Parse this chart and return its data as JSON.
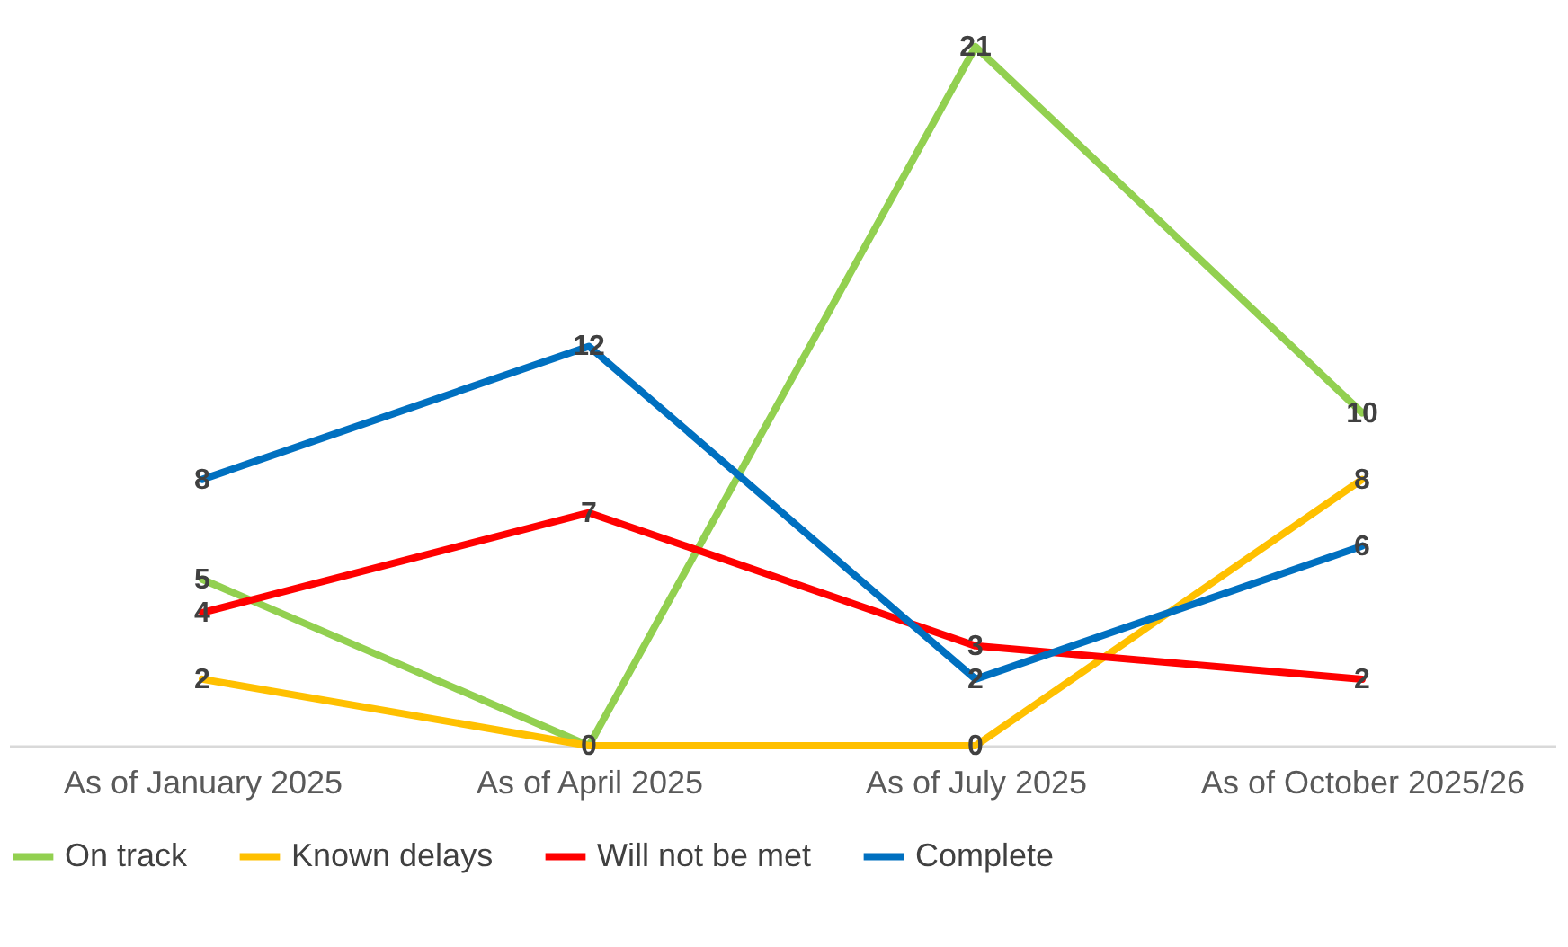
{
  "chart_data": {
    "type": "line",
    "categories": [
      "As of January 2025",
      "As of April 2025",
      "As of July 2025",
      "As of October 2025/26"
    ],
    "series": [
      {
        "name": "On track",
        "color": "#92d050",
        "values": [
          5,
          0,
          21,
          10
        ],
        "value_labels": [
          "5",
          "0",
          "21",
          "10"
        ]
      },
      {
        "name": "Known delays",
        "color": "#ffc000",
        "values": [
          2,
          0,
          0,
          8
        ],
        "value_labels": [
          "2",
          null,
          "0",
          "8"
        ]
      },
      {
        "name": "Will not be met",
        "color": "#ff0000",
        "values": [
          4,
          7,
          3,
          2
        ],
        "value_labels": [
          "4",
          "7",
          "3",
          "2"
        ]
      },
      {
        "name": "Complete",
        "color": "#0070c0",
        "values": [
          8,
          12,
          2,
          6
        ],
        "value_labels": [
          "8",
          "12",
          "2",
          "6"
        ]
      }
    ],
    "grid": false,
    "legend": "bottom",
    "marker": "none",
    "line_style": "solid"
  }
}
